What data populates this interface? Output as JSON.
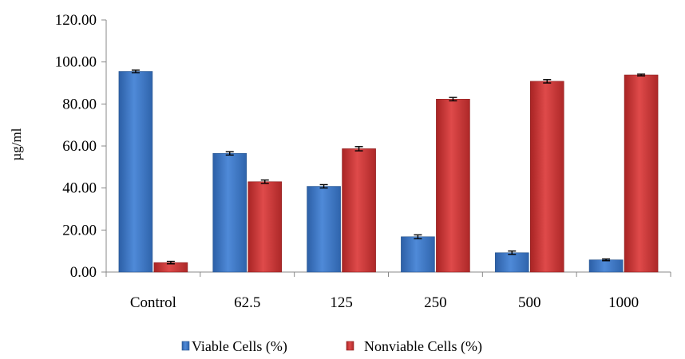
{
  "chart_data": {
    "type": "bar",
    "title": "",
    "xlabel": "",
    "ylabel": "µg/ml",
    "ylim": [
      0,
      120
    ],
    "yticks": [
      "0.00",
      "20.00",
      "40.00",
      "60.00",
      "80.00",
      "100.00",
      "120.00"
    ],
    "categories": [
      "Control",
      "62.5",
      "125",
      "250",
      "500",
      "1000"
    ],
    "series": [
      {
        "name": "Viable Cells (%)",
        "color": "#3f78c8",
        "values": [
          95.5,
          56.5,
          40.8,
          16.8,
          9.2,
          5.8
        ],
        "errors": [
          0.6,
          0.8,
          0.8,
          0.9,
          0.8,
          0.4
        ]
      },
      {
        "name": "Nonviable Cells (%)",
        "color": "#c83232",
        "values": [
          4.5,
          43.0,
          58.7,
          82.3,
          90.8,
          93.8
        ],
        "errors": [
          0.6,
          0.8,
          1.0,
          0.8,
          0.8,
          0.4
        ]
      }
    ],
    "grid": false,
    "legend": "bottom"
  }
}
